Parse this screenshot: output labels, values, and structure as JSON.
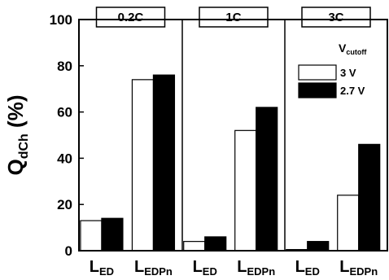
{
  "chart_data": {
    "type": "bar",
    "ylabel": {
      "main": "Q",
      "sub": "dCh",
      "unit": " (%)"
    },
    "ylim": [
      0,
      100
    ],
    "yticks": [
      0,
      20,
      40,
      60,
      80,
      100
    ],
    "grid": false,
    "legend": {
      "title": {
        "main": "V",
        "sub": "cutoff"
      },
      "placement": "top-right",
      "entries": [
        {
          "label": "3 V",
          "color": "#ffffff"
        },
        {
          "label": "2.7 V",
          "color": "#000000"
        }
      ]
    },
    "panels": [
      {
        "label": "0.2C",
        "categories": [
          {
            "main": "L",
            "sub": "ED"
          },
          {
            "main": "L",
            "sub": "EDPn"
          }
        ],
        "series": [
          {
            "name": "3 V",
            "values": [
              13,
              74
            ]
          },
          {
            "name": "2.7 V",
            "values": [
              14,
              76
            ]
          }
        ]
      },
      {
        "label": "1C",
        "categories": [
          {
            "main": "L",
            "sub": "ED"
          },
          {
            "main": "L",
            "sub": "EDPn"
          }
        ],
        "series": [
          {
            "name": "3 V",
            "values": [
              4,
              52
            ]
          },
          {
            "name": "2.7 V",
            "values": [
              6,
              62
            ]
          }
        ]
      },
      {
        "label": "3C",
        "categories": [
          {
            "main": "L",
            "sub": "ED"
          },
          {
            "main": "L",
            "sub": "EDPn"
          }
        ],
        "series": [
          {
            "name": "3 V",
            "values": [
              0.5,
              24
            ]
          },
          {
            "name": "2.7 V",
            "values": [
              4,
              46
            ]
          }
        ]
      }
    ]
  }
}
